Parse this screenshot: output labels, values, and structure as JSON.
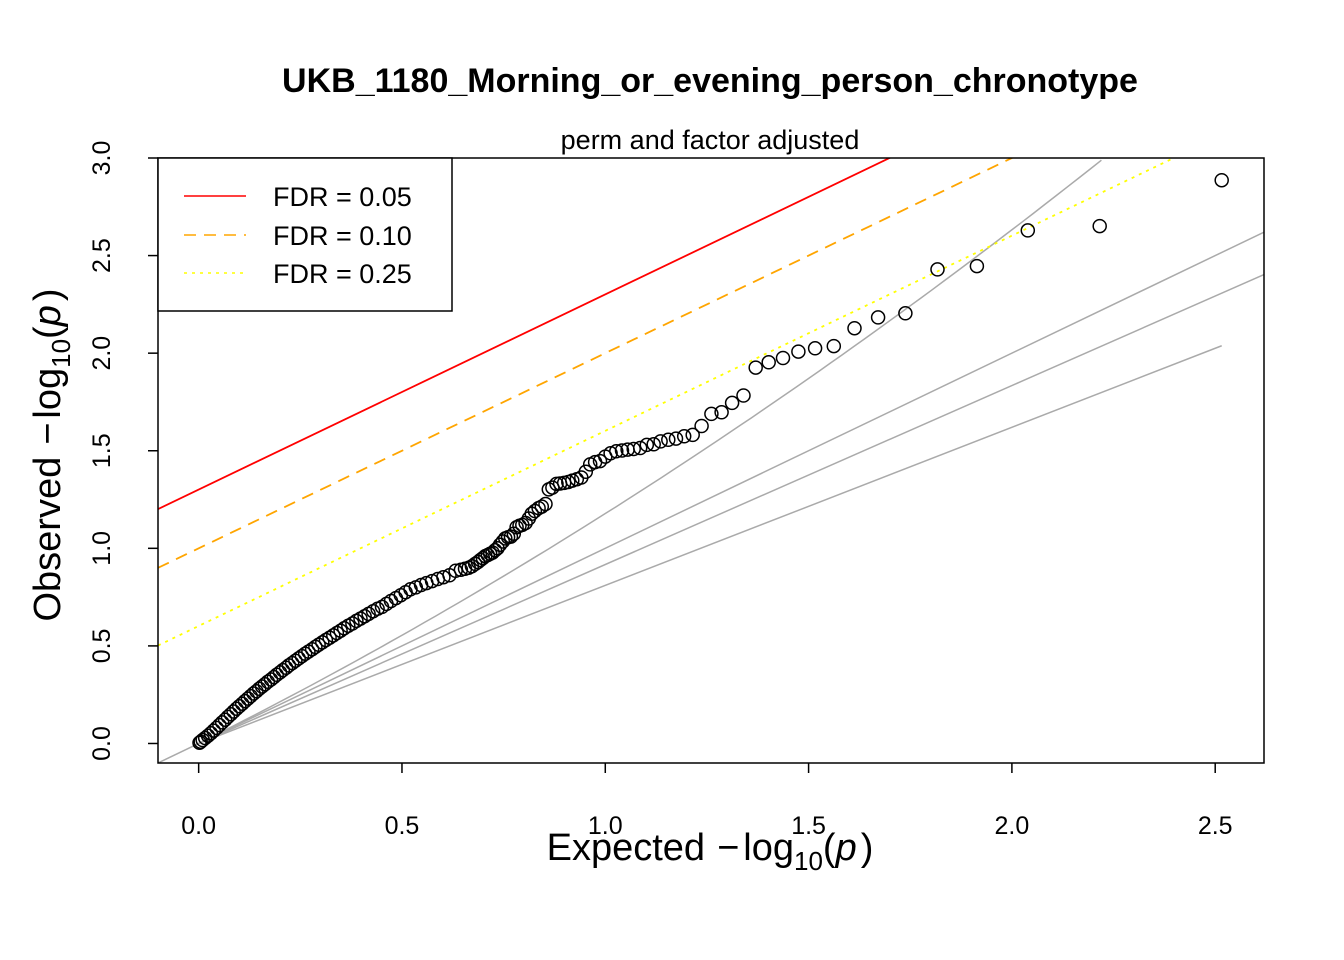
{
  "chart_data": {
    "type": "scatter",
    "title": "UKB_1180_Morning_or_evening_person_chronotype",
    "subtitle": "perm and factor adjusted",
    "xlabel": {
      "prefix": "Expected",
      "log": "log",
      "base": "10",
      "var": "p"
    },
    "ylabel": {
      "prefix": "Observed",
      "log": "log",
      "base": "10",
      "var": "p"
    },
    "xlim": [
      -0.1,
      2.62
    ],
    "ylim": [
      -0.1,
      3.0
    ],
    "xticks": [
      0.0,
      0.5,
      1.0,
      1.5,
      2.0,
      2.5
    ],
    "xtick_labels": [
      "0.0",
      "0.5",
      "1.0",
      "1.5",
      "2.0",
      "2.5"
    ],
    "yticks": [
      0.0,
      0.5,
      1.0,
      1.5,
      2.0,
      2.5,
      3.0
    ],
    "ytick_labels": [
      "0.0",
      "0.5",
      "1.0",
      "1.5",
      "2.0",
      "2.5",
      "3.0"
    ],
    "legend": {
      "position": "top-left",
      "entries": [
        {
          "label": "FDR = 0.05",
          "color": "#ff0000",
          "style": "solid"
        },
        {
          "label": "FDR = 0.10",
          "color": "#ffa500",
          "style": "dashed"
        },
        {
          "label": "FDR = 0.25",
          "color": "#ffff00",
          "style": "dotted"
        }
      ]
    },
    "fdr_lines": [
      {
        "name": "FDR = 0.05",
        "intercept": 1.301,
        "slope": 1.0,
        "color": "#ff0000",
        "style": "solid"
      },
      {
        "name": "FDR = 0.10",
        "intercept": 1.0,
        "slope": 1.0,
        "color": "#ffa500",
        "style": "dashed"
      },
      {
        "name": "FDR = 0.25",
        "intercept": 0.602,
        "slope": 1.0,
        "color": "#ffff00",
        "style": "dotted"
      }
    ],
    "reference_color": "#aaaaaa",
    "point_color": "#000000",
    "points": [
      [
        2.516,
        2.886
      ],
      [
        2.216,
        2.651
      ],
      [
        2.039,
        2.629
      ],
      [
        1.914,
        2.446
      ],
      [
        1.817,
        2.429
      ],
      [
        1.738,
        2.204
      ],
      [
        1.671,
        2.183
      ],
      [
        1.613,
        2.128
      ],
      [
        1.562,
        2.036
      ],
      [
        1.516,
        2.025
      ],
      [
        1.475,
        2.008
      ],
      [
        1.437,
        1.975
      ],
      [
        1.402,
        1.953
      ],
      [
        1.37,
        1.926
      ],
      [
        1.34,
        1.783
      ],
      [
        1.312,
        1.745
      ],
      [
        1.286,
        1.697
      ],
      [
        1.261,
        1.689
      ],
      [
        1.237,
        1.627
      ],
      [
        1.215,
        1.581
      ],
      [
        1.194,
        1.574
      ],
      [
        1.174,
        1.562
      ],
      [
        1.155,
        1.556
      ],
      [
        1.136,
        1.548
      ],
      [
        1.119,
        1.533
      ],
      [
        1.102,
        1.53
      ],
      [
        1.086,
        1.514
      ],
      [
        1.07,
        1.509
      ],
      [
        1.055,
        1.506
      ],
      [
        1.041,
        1.501
      ],
      [
        1.027,
        1.497
      ],
      [
        1.013,
        1.487
      ],
      [
        1.0,
        1.47
      ],
      [
        0.987,
        1.447
      ],
      [
        0.975,
        1.442
      ],
      [
        0.963,
        1.43
      ],
      [
        0.952,
        1.392
      ],
      [
        0.941,
        1.363
      ],
      [
        0.93,
        1.354
      ],
      [
        0.919,
        1.347
      ],
      [
        0.909,
        1.34
      ],
      [
        0.899,
        1.335
      ],
      [
        0.889,
        1.332
      ],
      [
        0.88,
        1.33
      ],
      [
        0.87,
        1.311
      ],
      [
        0.861,
        1.302
      ],
      [
        0.853,
        1.227
      ],
      [
        0.844,
        1.214
      ],
      [
        0.836,
        1.206
      ],
      [
        0.827,
        1.191
      ],
      [
        0.819,
        1.177
      ],
      [
        0.812,
        1.153
      ],
      [
        0.804,
        1.13
      ],
      [
        0.796,
        1.12
      ],
      [
        0.789,
        1.116
      ],
      [
        0.782,
        1.108
      ],
      [
        0.775,
        1.075
      ],
      [
        0.768,
        1.06
      ],
      [
        0.761,
        1.057
      ],
      [
        0.754,
        1.051
      ],
      [
        0.748,
        1.035
      ],
      [
        0.741,
        1.018
      ],
      [
        0.735,
        1.0
      ],
      [
        0.729,
        0.99
      ],
      [
        0.723,
        0.978
      ],
      [
        0.717,
        0.972
      ],
      [
        0.711,
        0.966
      ],
      [
        0.705,
        0.96
      ],
      [
        0.699,
        0.95
      ],
      [
        0.693,
        0.94
      ],
      [
        0.687,
        0.93
      ],
      [
        0.68,
        0.92
      ],
      [
        0.672,
        0.908
      ],
      [
        0.664,
        0.9
      ],
      [
        0.655,
        0.895
      ],
      [
        0.645,
        0.89
      ],
      [
        0.632,
        0.885
      ],
      [
        0.617,
        0.862
      ],
      [
        0.602,
        0.852
      ],
      [
        0.588,
        0.843
      ],
      [
        0.574,
        0.832
      ],
      [
        0.56,
        0.822
      ],
      [
        0.547,
        0.812
      ],
      [
        0.534,
        0.8
      ],
      [
        0.521,
        0.79
      ],
      [
        0.509,
        0.775
      ],
      [
        0.497,
        0.76
      ],
      [
        0.485,
        0.745
      ],
      [
        0.473,
        0.73
      ],
      [
        0.462,
        0.715
      ],
      [
        0.451,
        0.7
      ],
      [
        0.44,
        0.69
      ],
      [
        0.429,
        0.678
      ],
      [
        0.418,
        0.664
      ],
      [
        0.408,
        0.652
      ],
      [
        0.398,
        0.64
      ],
      [
        0.388,
        0.628
      ],
      [
        0.378,
        0.615
      ],
      [
        0.368,
        0.603
      ],
      [
        0.358,
        0.59
      ],
      [
        0.349,
        0.578
      ],
      [
        0.34,
        0.566
      ],
      [
        0.331,
        0.554
      ],
      [
        0.322,
        0.542
      ],
      [
        0.313,
        0.53
      ],
      [
        0.304,
        0.518
      ],
      [
        0.295,
        0.506
      ],
      [
        0.287,
        0.495
      ],
      [
        0.279,
        0.483
      ],
      [
        0.27,
        0.471
      ],
      [
        0.262,
        0.46
      ],
      [
        0.254,
        0.448
      ],
      [
        0.246,
        0.436
      ],
      [
        0.238,
        0.424
      ],
      [
        0.23,
        0.412
      ],
      [
        0.222,
        0.4
      ],
      [
        0.215,
        0.388
      ],
      [
        0.207,
        0.376
      ],
      [
        0.2,
        0.364
      ],
      [
        0.192,
        0.352
      ],
      [
        0.185,
        0.34
      ],
      [
        0.178,
        0.328
      ],
      [
        0.17,
        0.316
      ],
      [
        0.163,
        0.304
      ],
      [
        0.156,
        0.292
      ],
      [
        0.149,
        0.28
      ],
      [
        0.142,
        0.268
      ],
      [
        0.135,
        0.256
      ],
      [
        0.128,
        0.243
      ],
      [
        0.121,
        0.23
      ],
      [
        0.114,
        0.217
      ],
      [
        0.107,
        0.204
      ],
      [
        0.1,
        0.191
      ],
      [
        0.093,
        0.178
      ],
      [
        0.086,
        0.164
      ],
      [
        0.079,
        0.15
      ],
      [
        0.072,
        0.136
      ],
      [
        0.065,
        0.122
      ],
      [
        0.058,
        0.108
      ],
      [
        0.051,
        0.094
      ],
      [
        0.044,
        0.08
      ],
      [
        0.037,
        0.066
      ],
      [
        0.03,
        0.052
      ],
      [
        0.023,
        0.04
      ],
      [
        0.016,
        0.028
      ],
      [
        0.01,
        0.018
      ],
      [
        0.005,
        0.009
      ],
      [
        0.002,
        0.004
      ]
    ]
  }
}
